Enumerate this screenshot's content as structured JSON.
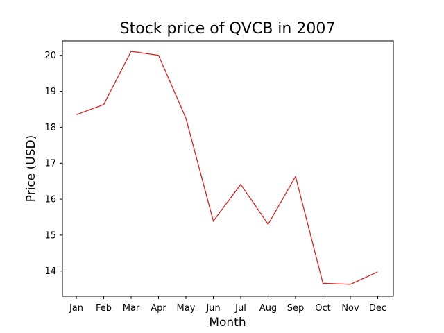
{
  "chart_data": {
    "type": "line",
    "title": "Stock price of QVCB in 2007",
    "xlabel": "Month",
    "ylabel": "Price (USD)",
    "categories": [
      "Jan",
      "Feb",
      "Mar",
      "Apr",
      "May",
      "Jun",
      "Jul",
      "Aug",
      "Sep",
      "Oct",
      "Nov",
      "Dec"
    ],
    "series": [
      {
        "values": [
          18.35,
          18.63,
          20.11,
          20.0,
          18.25,
          15.39,
          16.41,
          15.3,
          16.63,
          13.66,
          13.63,
          13.98
        ],
        "color": "#e0211c"
      }
    ],
    "yticks": [
      14,
      15,
      16,
      17,
      18,
      19,
      20
    ],
    "ylim": [
      13.3,
      20.4
    ],
    "grid": false,
    "legend": "none"
  }
}
